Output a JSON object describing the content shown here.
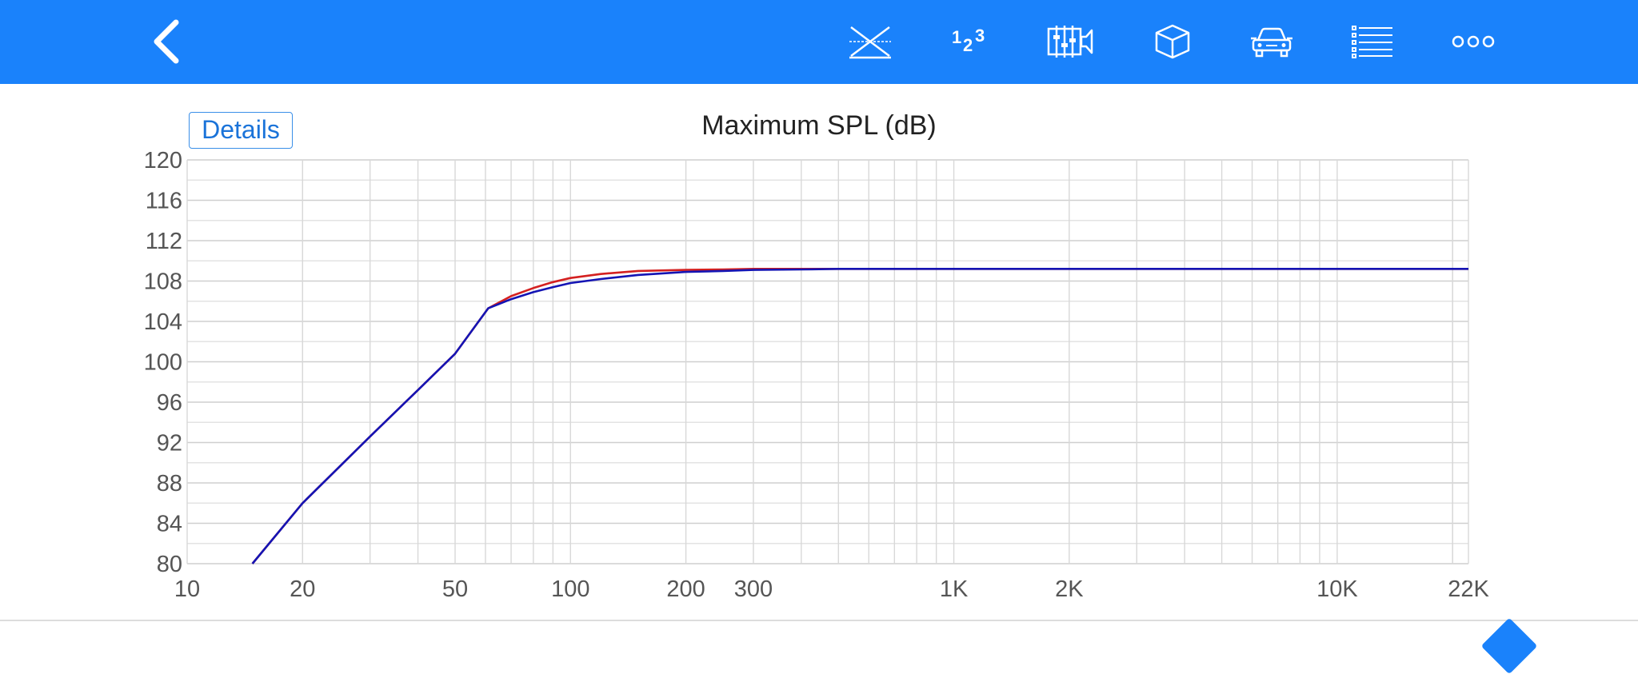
{
  "toolbar": {
    "color": "#1a82fb",
    "icons": [
      "back-chevron-icon",
      "crossover-icon",
      "number-123-icon",
      "filter-bank-icon",
      "box-icon",
      "car-icon",
      "list-icon",
      "more-icon"
    ],
    "numbers_glyph": [
      "1",
      "2",
      "3"
    ]
  },
  "details": {
    "label": "Details"
  },
  "chart_data": {
    "type": "line",
    "title": "Maximum SPL (dB)",
    "x_scale": "log",
    "xlim": [
      10,
      22000
    ],
    "ylim": [
      80,
      120
    ],
    "y_ticks": [
      80,
      84,
      88,
      92,
      96,
      100,
      104,
      108,
      112,
      116,
      120
    ],
    "y_tick_labels": [
      "80",
      "84",
      "88",
      "92",
      "96",
      "100",
      "104",
      "108",
      "112",
      "116",
      "120"
    ],
    "x_ticks": [
      10,
      20,
      50,
      100,
      200,
      300,
      1000,
      2000,
      10000,
      22000
    ],
    "x_tick_labels": [
      "10",
      "20",
      "50",
      "100",
      "200",
      "300",
      "1K",
      "2K",
      "10K",
      "22K"
    ],
    "grid": true,
    "series": [
      {
        "color": "#d42020",
        "x": [
          14.8,
          20,
          30,
          40,
          50,
          61,
          70,
          80,
          90,
          100,
          120,
          150,
          200,
          250,
          300,
          400,
          500,
          700,
          1000,
          2000,
          5000,
          10000,
          22000
        ],
        "y": [
          80,
          86.0,
          92.6,
          97.2,
          100.8,
          105.3,
          106.5,
          107.3,
          107.9,
          108.3,
          108.7,
          109.0,
          109.1,
          109.15,
          109.2,
          109.2,
          109.2,
          109.2,
          109.2,
          109.2,
          109.2,
          109.2,
          109.2
        ]
      },
      {
        "color": "#1414b4",
        "x": [
          14.8,
          20,
          30,
          40,
          50,
          61,
          70,
          80,
          90,
          100,
          120,
          150,
          200,
          250,
          300,
          400,
          500,
          700,
          1000,
          2000,
          5000,
          10000,
          22000
        ],
        "y": [
          80,
          86.0,
          92.6,
          97.2,
          100.8,
          105.3,
          106.2,
          106.9,
          107.4,
          107.8,
          108.2,
          108.6,
          108.9,
          109.0,
          109.1,
          109.15,
          109.2,
          109.2,
          109.2,
          109.2,
          109.2,
          109.2,
          109.2
        ]
      }
    ]
  },
  "bottom_panel": {
    "accent_color": "#1a82fb"
  }
}
